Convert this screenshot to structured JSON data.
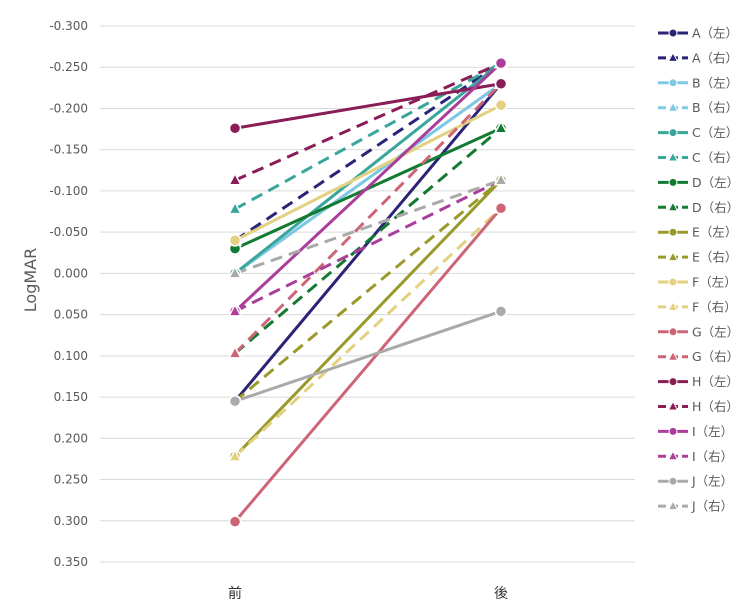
{
  "chart_data": {
    "type": "line",
    "categories": [
      "前",
      "後"
    ],
    "ylabel": "LogMAR",
    "ylim": [
      -0.3,
      0.35
    ],
    "y_inverted": true,
    "yticks": [
      -0.3,
      -0.25,
      -0.2,
      -0.15,
      -0.1,
      -0.05,
      0.0,
      0.05,
      0.1,
      0.15,
      0.2,
      0.25,
      0.3,
      0.35
    ],
    "ytick_labels": [
      "-0.300",
      "-0.250",
      "-0.200",
      "-0.150",
      "-0.100",
      "-0.050",
      "0.000",
      "0.050",
      "0.100",
      "0.150",
      "0.200",
      "0.250",
      "0.300",
      "0.350"
    ],
    "grid": true,
    "legend_position": "right",
    "series": [
      {
        "name": "A（左）",
        "values": [
          0.155,
          -0.23
        ],
        "color": "#2b2377",
        "dash": false,
        "marker": "circle"
      },
      {
        "name": "A（右）",
        "values": [
          -0.04,
          -0.255
        ],
        "color": "#2b2377",
        "dash": true,
        "marker": "triangle"
      },
      {
        "name": "B（左）",
        "values": [
          0.0,
          -0.23
        ],
        "color": "#7ec8e3",
        "dash": false,
        "marker": "circle"
      },
      {
        "name": "B（右）",
        "values": [
          0.0,
          -0.23
        ],
        "color": "#7ec8e3",
        "dash": true,
        "marker": "triangle"
      },
      {
        "name": "C（左）",
        "values": [
          0.0,
          -0.255
        ],
        "color": "#3aa59a",
        "dash": false,
        "marker": "circle"
      },
      {
        "name": "C（右）",
        "values": [
          -0.078,
          -0.255
        ],
        "color": "#3aa59a",
        "dash": true,
        "marker": "triangle"
      },
      {
        "name": "D（左）",
        "values": [
          -0.03,
          -0.176
        ],
        "color": "#137a31",
        "dash": false,
        "marker": "circle"
      },
      {
        "name": "D（右）",
        "values": [
          0.097,
          -0.176
        ],
        "color": "#137a31",
        "dash": true,
        "marker": "triangle"
      },
      {
        "name": "E（左）",
        "values": [
          0.222,
          -0.113
        ],
        "color": "#9a9a2c",
        "dash": false,
        "marker": "circle"
      },
      {
        "name": "E（右）",
        "values": [
          0.155,
          -0.113
        ],
        "color": "#9a9a2c",
        "dash": true,
        "marker": "triangle"
      },
      {
        "name": "F（左）",
        "values": [
          -0.04,
          -0.204
        ],
        "color": "#e3d080",
        "dash": false,
        "marker": "circle"
      },
      {
        "name": "F（右）",
        "values": [
          0.222,
          -0.079
        ],
        "color": "#e3d080",
        "dash": true,
        "marker": "triangle"
      },
      {
        "name": "G（左）",
        "values": [
          0.301,
          -0.079
        ],
        "color": "#cc6677",
        "dash": false,
        "marker": "circle"
      },
      {
        "name": "G（右）",
        "values": [
          0.097,
          -0.23
        ],
        "color": "#cc6677",
        "dash": true,
        "marker": "triangle"
      },
      {
        "name": "H（左）",
        "values": [
          -0.176,
          -0.23
        ],
        "color": "#8a1c56",
        "dash": false,
        "marker": "circle"
      },
      {
        "name": "H（右）",
        "values": [
          -0.113,
          -0.255
        ],
        "color": "#8a1c56",
        "dash": true,
        "marker": "triangle"
      },
      {
        "name": "I（左）",
        "values": [
          0.046,
          -0.255
        ],
        "color": "#aa3e9a",
        "dash": false,
        "marker": "circle"
      },
      {
        "name": "I（右）",
        "values": [
          0.046,
          -0.113
        ],
        "color": "#aa3e9a",
        "dash": true,
        "marker": "triangle"
      },
      {
        "name": "J（左）",
        "values": [
          0.155,
          0.046
        ],
        "color": "#aaaaaa",
        "dash": false,
        "marker": "circle"
      },
      {
        "name": "J（右）",
        "values": [
          0.0,
          -0.113
        ],
        "color": "#aaaaaa",
        "dash": true,
        "marker": "triangle"
      }
    ]
  }
}
